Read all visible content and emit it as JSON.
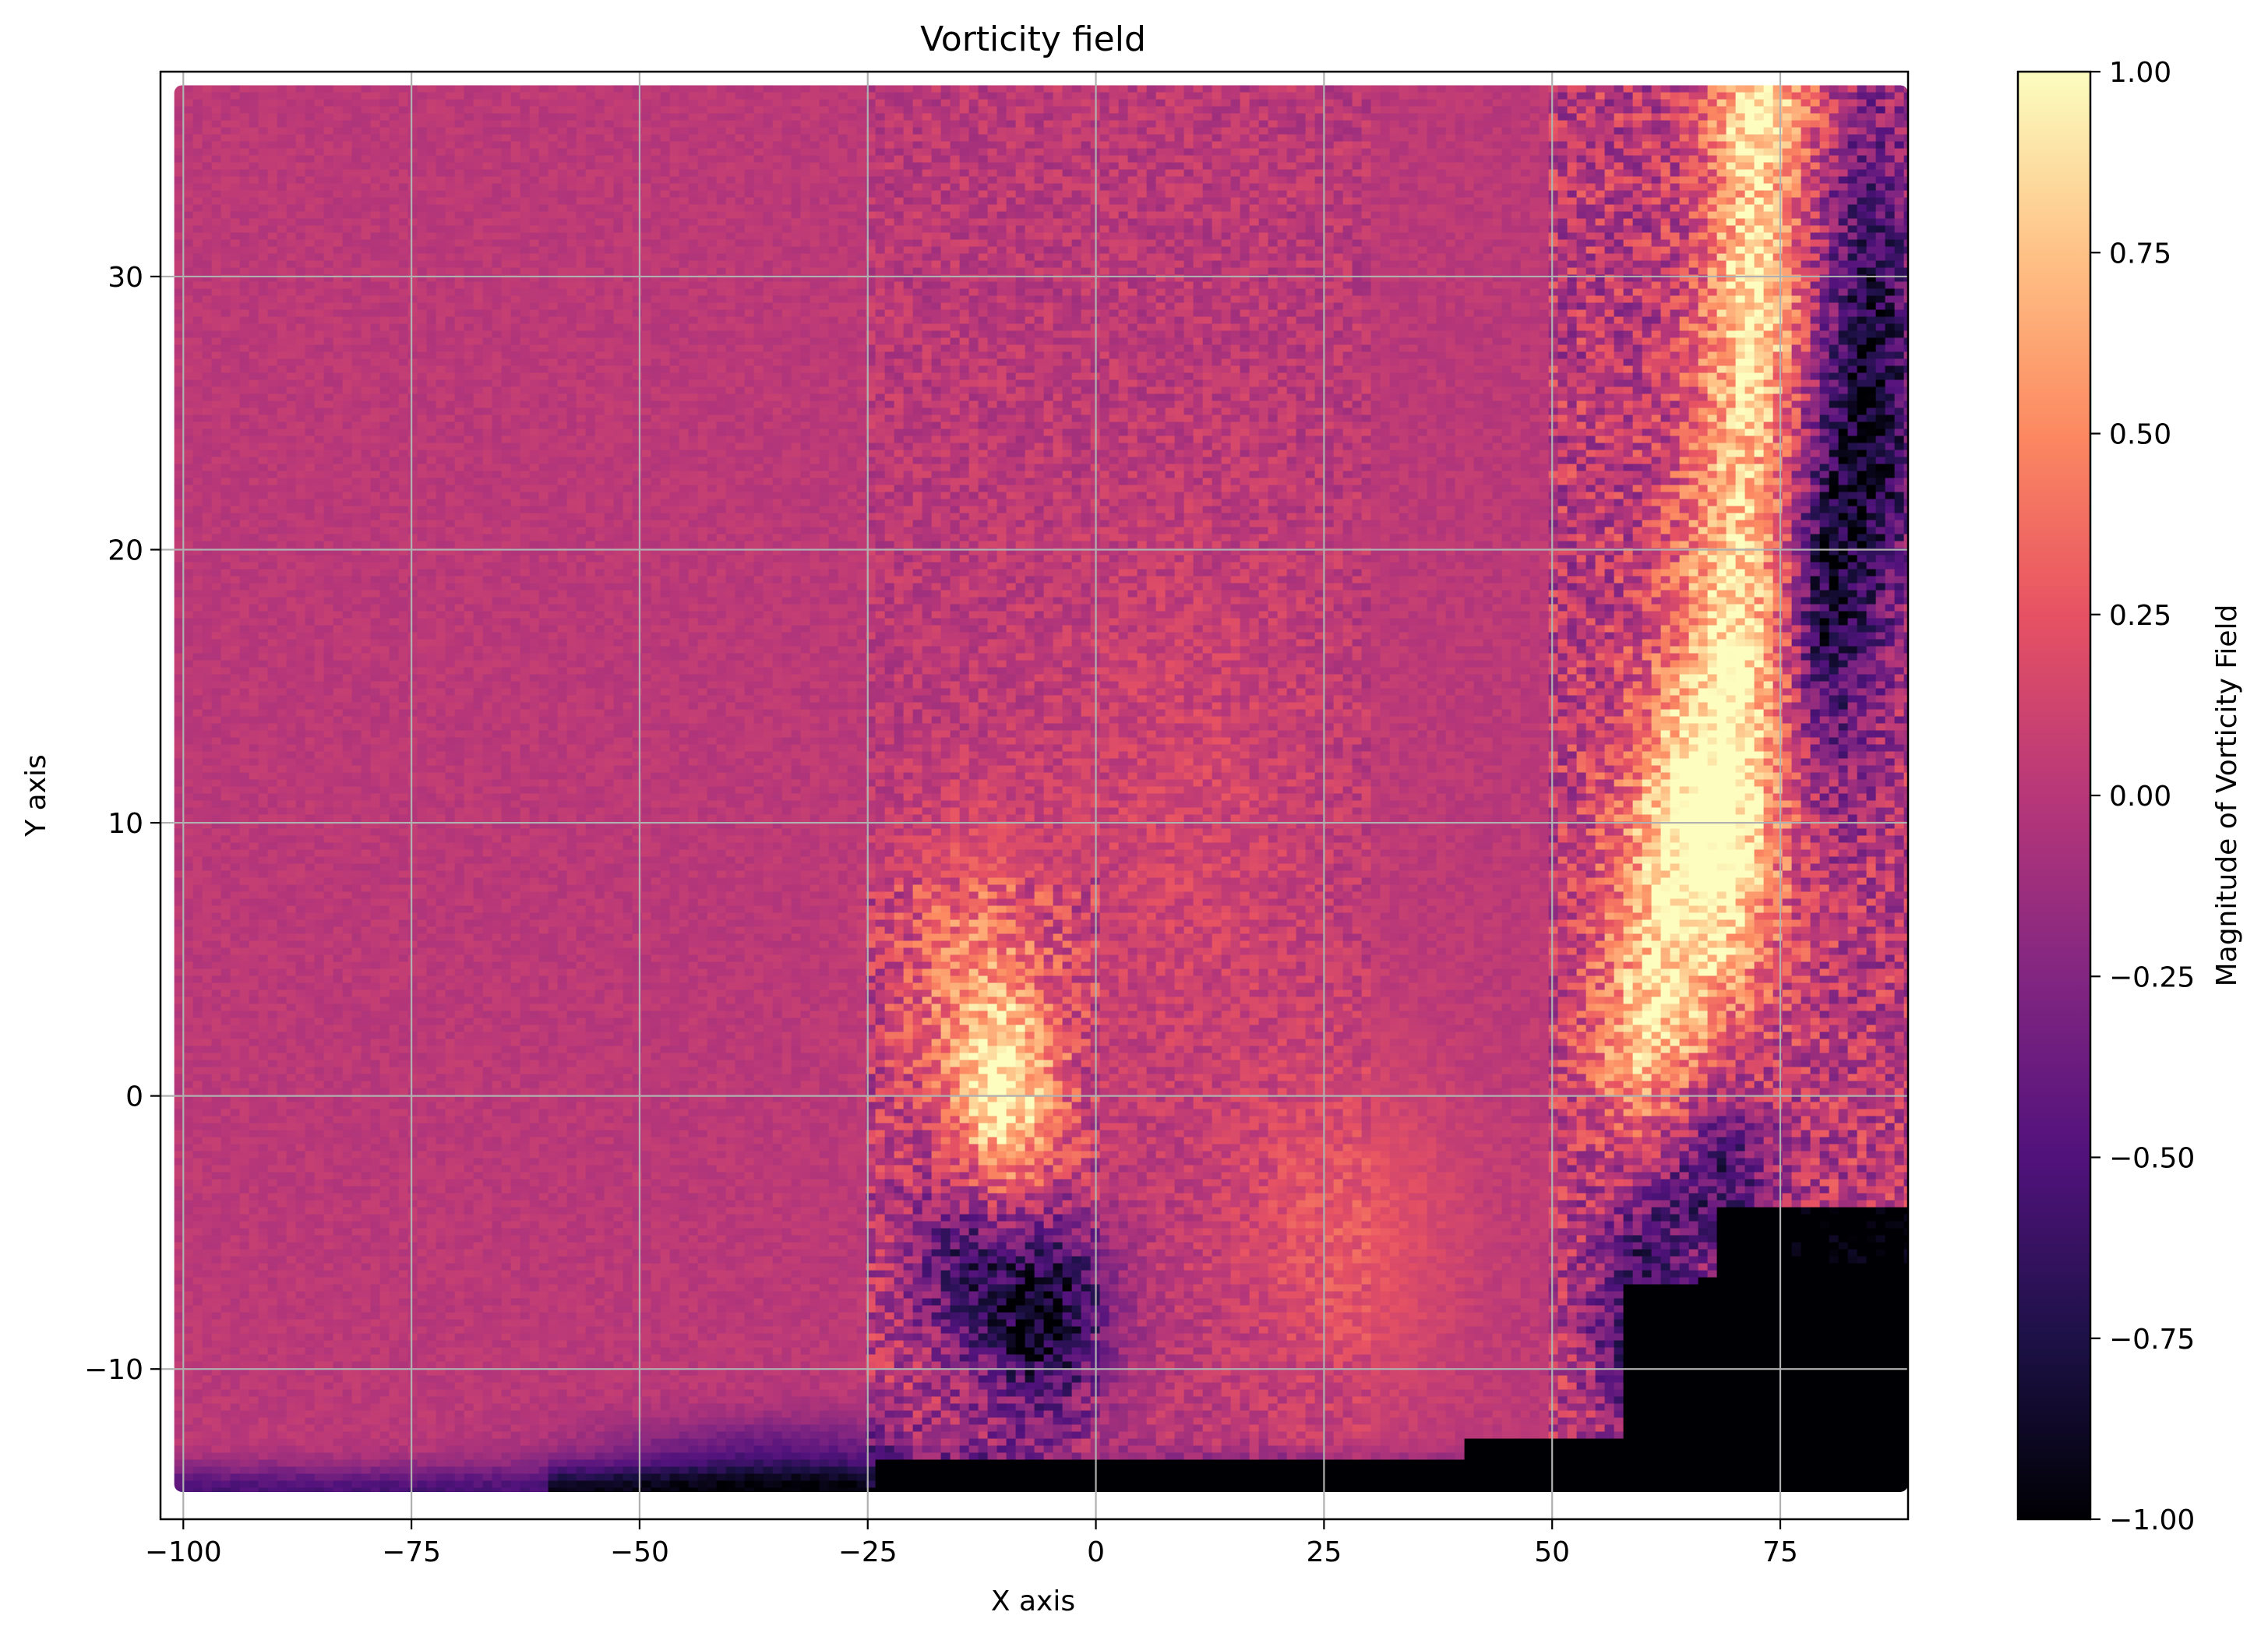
{
  "chart_data": {
    "type": "heatmap",
    "title": "Vorticity field",
    "xlabel": "X axis",
    "ylabel": "Y axis",
    "xlim": [
      -102.5,
      89
    ],
    "ylim": [
      -15.5,
      37.5
    ],
    "xticks": [
      -100,
      -75,
      -50,
      -25,
      0,
      25,
      50,
      75
    ],
    "xtick_labels": [
      "−100",
      "−75",
      "−50",
      "−25",
      "0",
      "25",
      "50",
      "75"
    ],
    "yticks": [
      -10,
      0,
      10,
      20,
      30
    ],
    "ytick_labels": [
      "−10",
      "0",
      "10",
      "20",
      "30"
    ],
    "grid": true,
    "colormap": "magma",
    "colorbar": {
      "label": "Magnitude of Vorticity Field",
      "range": [
        -1.0,
        1.0
      ],
      "ticks": [
        -1.0,
        -0.75,
        -0.5,
        -0.25,
        0.0,
        0.25,
        0.5,
        0.75,
        1.0
      ],
      "tick_labels": [
        "−1.00",
        "−0.75",
        "−0.50",
        "−0.25",
        "0.00",
        "0.25",
        "0.50",
        "0.75",
        "1.00"
      ],
      "stops": [
        "#000004",
        "#1d1147",
        "#51127c",
        "#822681",
        "#b73779",
        "#e75263",
        "#fc8961",
        "#fec287",
        "#fcfdbf"
      ]
    },
    "field": {
      "x_range": [
        -101,
        89
      ],
      "y_range": [
        -14.5,
        37
      ],
      "baseline_value": 0.0,
      "features": [
        {
          "name": "right-bright-band",
          "x": 65,
          "y": 10,
          "value": 1.0
        },
        {
          "name": "right-upper-bright",
          "x": 72,
          "y": 30,
          "value": 0.9
        },
        {
          "name": "right-dark-column",
          "x": 83,
          "y": 24,
          "value": -0.85
        },
        {
          "name": "bottom-right-dark",
          "x": 75,
          "y": -10,
          "value": -1.0
        },
        {
          "name": "center-bright-spot",
          "x": -10,
          "y": 0,
          "value": 0.9
        },
        {
          "name": "center-dark-spot",
          "x": -5,
          "y": -8,
          "value": -0.9
        },
        {
          "name": "bottom-dark-edge",
          "x": 0,
          "y": -14,
          "value": -1.0
        }
      ]
    }
  }
}
